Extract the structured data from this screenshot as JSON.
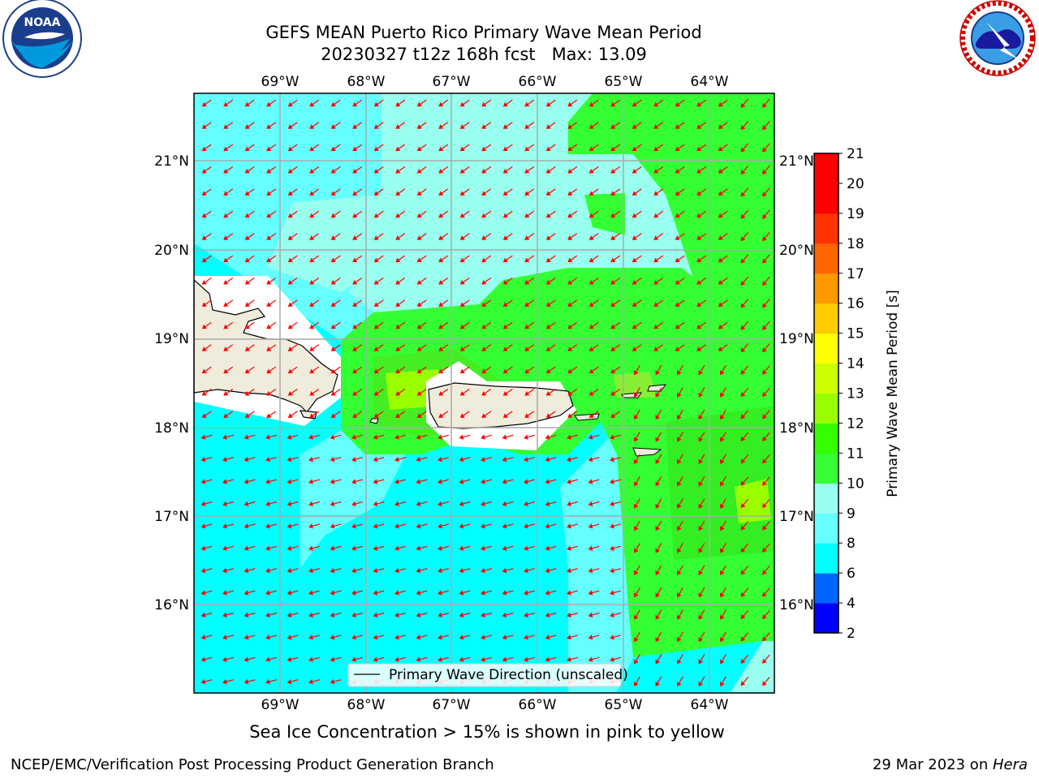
{
  "header": {
    "title_line1": "GEFS MEAN Puerto Rico Primary Wave Mean Period",
    "title_line2": "20230327 t12z 168h fcst   Max: 13.09"
  },
  "logos": {
    "left": {
      "icon": "noaa-logo",
      "text": "NOAA",
      "ring_text": "NATIONAL OCEANIC AND ATMOSPHERIC ADMINISTRATION · U.S. DEPARTMENT OF COMMERCE"
    },
    "right": {
      "icon": "nws-logo",
      "ring_text": "NATIONAL WEATHER SERVICE"
    }
  },
  "map": {
    "lon_labels": [
      "69°W",
      "68°W",
      "67°W",
      "66°W",
      "65°W",
      "64°W"
    ],
    "lat_labels": [
      "21°N",
      "20°N",
      "19°N",
      "18°N",
      "17°N",
      "16°N"
    ],
    "legend_label": "Primary Wave Direction (unscaled)",
    "colors": {
      "ocean_low": "#00ffff",
      "ocean_mid": "#66ffff",
      "ocean_high": "#99ffee",
      "green": "#33ff33",
      "yellow_green": "#99ff00",
      "land": "#efecdc",
      "arrow": "#ff0000"
    }
  },
  "colorbar": {
    "label": "Primary Wave Mean Period [s]",
    "ticks": [
      "2",
      "4",
      "6",
      "8",
      "9",
      "10",
      "11",
      "12",
      "13",
      "14",
      "15",
      "16",
      "17",
      "18",
      "19",
      "20",
      "21"
    ],
    "colors": [
      "#0000ff",
      "#0066ff",
      "#00ffff",
      "#66ffff",
      "#99ffee",
      "#33ff33",
      "#33ff00",
      "#99ff00",
      "#ccff00",
      "#ffff00",
      "#ffcc00",
      "#ff9900",
      "#ff6600",
      "#ff3300",
      "#ff0000",
      "#ff0000"
    ]
  },
  "footer": {
    "note": "Sea Ice Concentration > 15% is shown in pink to yellow",
    "left": "NCEP/EMC/Verification Post Processing Product Generation Branch",
    "right_prefix": "29 Mar 2023 on ",
    "right_host": "Hera"
  }
}
